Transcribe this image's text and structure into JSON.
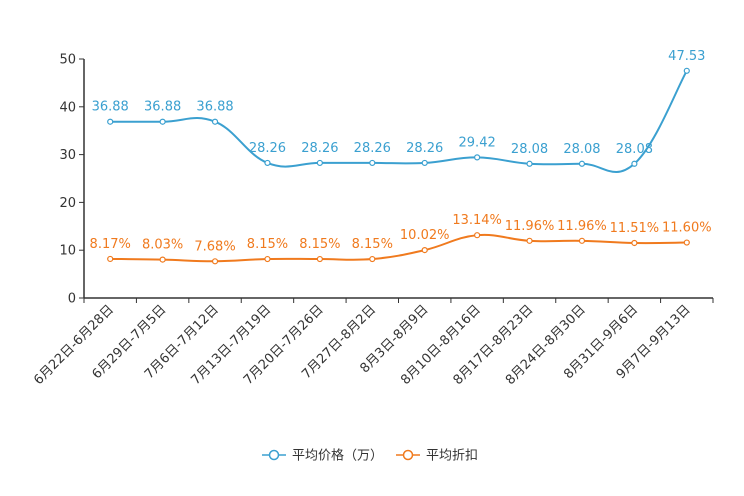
{
  "chart_data": {
    "type": "line",
    "title": "",
    "xlabel": "",
    "ylabel": "",
    "ylim": [
      0,
      50
    ],
    "yticks": [
      0,
      10,
      20,
      30,
      40,
      50
    ],
    "categories": [
      "6月22日-6月28日",
      "6月29日-7月5日",
      "7月6日-7月12日",
      "7月13日-7月19日",
      "7月20日-7月26日",
      "7月27日-8月2日",
      "8月3日-8月9日",
      "8月10日-8月16日",
      "8月17日-8月23日",
      "8月24日-8月30日",
      "8月31日-9月6日",
      "9月7日-9月13日"
    ],
    "series": [
      {
        "name": "平均价格（万）",
        "color": "#3ba0d0",
        "values": [
          36.88,
          36.88,
          36.88,
          28.26,
          28.26,
          28.26,
          28.26,
          29.42,
          28.08,
          28.08,
          28.08,
          47.53
        ],
        "labels": [
          "36.88",
          "36.88",
          "36.88",
          "28.26",
          "28.26",
          "28.26",
          "28.26",
          "29.42",
          "28.08",
          "28.08",
          "28.08",
          "47.53"
        ]
      },
      {
        "name": "平均折扣",
        "color": "#f07a1e",
        "values": [
          8.17,
          8.03,
          7.68,
          8.15,
          8.15,
          8.15,
          10.02,
          13.14,
          11.96,
          11.96,
          11.51,
          11.6
        ],
        "labels": [
          "8.17%",
          "8.03%",
          "7.68%",
          "8.15%",
          "8.15%",
          "8.15%",
          "10.02%",
          "13.14%",
          "11.96%",
          "11.96%",
          "11.51%",
          "11.60%"
        ]
      }
    ],
    "legend_position": "bottom-center"
  }
}
